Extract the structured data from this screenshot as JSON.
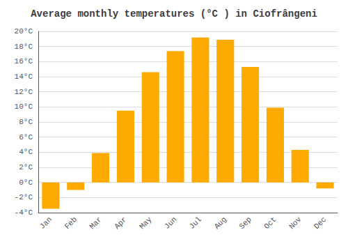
{
  "chart_data": {
    "type": "bar",
    "title": "Average monthly temperatures (°C ) in Ciofrângeni",
    "categories": [
      "Jan",
      "Feb",
      "Mar",
      "Apr",
      "May",
      "Jun",
      "Jul",
      "Aug",
      "Sep",
      "Oct",
      "Nov",
      "Dec"
    ],
    "values": [
      -3.5,
      -1.0,
      3.9,
      9.5,
      14.6,
      17.4,
      19.2,
      18.9,
      15.3,
      9.9,
      4.3,
      -0.8
    ],
    "color": "#FFAA00",
    "ylim": [
      -4,
      20
    ],
    "yticks": [
      {
        "value": -4,
        "label": "-4°C"
      },
      {
        "value": -2,
        "label": "-2°C"
      },
      {
        "value": 0,
        "label": "0°C"
      },
      {
        "value": 2,
        "label": "2°C"
      },
      {
        "value": 4,
        "label": "4°C"
      },
      {
        "value": 6,
        "label": "6°C"
      },
      {
        "value": 8,
        "label": "8°C"
      },
      {
        "value": 10,
        "label": "10°C"
      },
      {
        "value": 12,
        "label": "12°C"
      },
      {
        "value": 14,
        "label": "14°C"
      },
      {
        "value": 16,
        "label": "16°C"
      },
      {
        "value": 18,
        "label": "18°C"
      },
      {
        "value": 20,
        "label": "20°C"
      }
    ],
    "grid": true
  }
}
